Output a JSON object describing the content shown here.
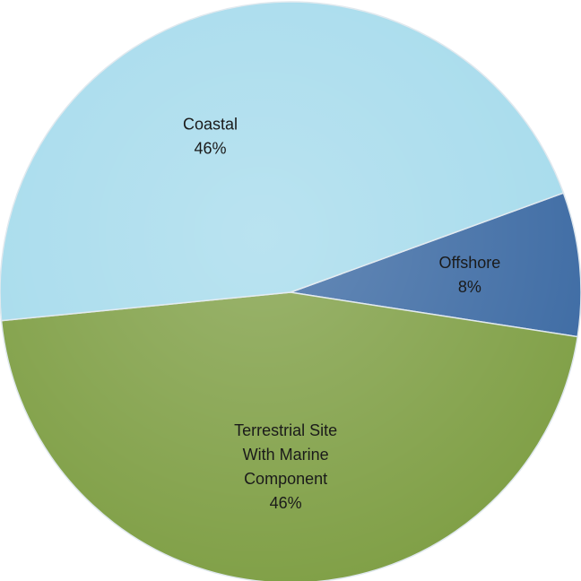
{
  "chart_data": {
    "type": "pie",
    "title": "",
    "slices": [
      {
        "label_lines": [
          "Offshore"
        ],
        "value_label": "8%",
        "value": 8,
        "color": "#3c6aa3"
      },
      {
        "label_lines": [
          "Terrestrial Site",
          "With Marine",
          "Component"
        ],
        "value_label": "46%",
        "value": 46,
        "color": "#7f9f45"
      },
      {
        "label_lines": [
          "Coastal"
        ],
        "value_label": "46%",
        "value": 46,
        "color": "#a6dbec"
      }
    ],
    "data_labels_inside": true,
    "legend": "none"
  }
}
